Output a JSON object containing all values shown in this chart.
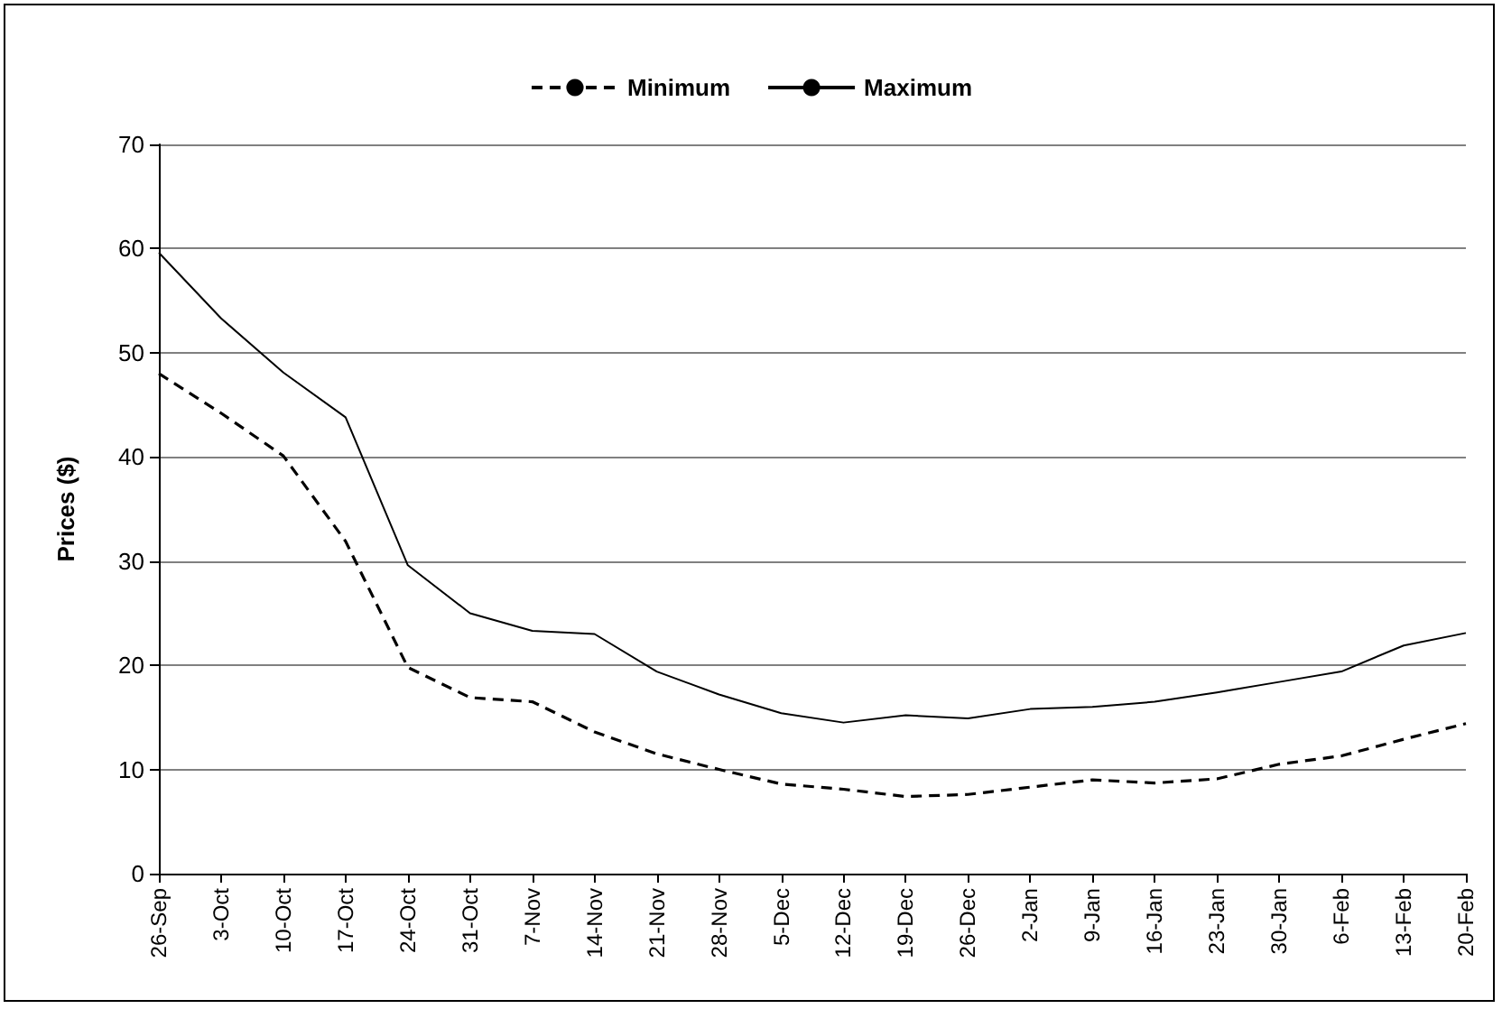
{
  "chart_data": {
    "type": "line",
    "ylabel": "Prices ($)",
    "categories": [
      "26-Sep",
      "3-Oct",
      "10-Oct",
      "17-Oct",
      "24-Oct",
      "31-Oct",
      "7-Nov",
      "14-Nov",
      "21-Nov",
      "28-Nov",
      "5-Dec",
      "12-Dec",
      "19-Dec",
      "26-Dec",
      "2-Jan",
      "9-Jan",
      "16-Jan",
      "23-Jan",
      "30-Jan",
      "6-Feb",
      "13-Feb",
      "20-Feb"
    ],
    "series": [
      {
        "name": "Minimum",
        "color": "#000000",
        "line_style": "dashed",
        "values": [
          48.0,
          44.2,
          40.1,
          31.9,
          19.8,
          16.9,
          16.5,
          13.6,
          11.5,
          10.0,
          8.6,
          8.1,
          7.4,
          7.6,
          8.3,
          9.0,
          8.7,
          9.1,
          10.5,
          11.3,
          12.9,
          14.4
        ]
      },
      {
        "name": "Maximum",
        "color": "#000000",
        "line_style": "solid",
        "values": [
          59.6,
          53.3,
          48.1,
          43.8,
          29.6,
          25.0,
          23.3,
          23.0,
          19.4,
          17.2,
          15.4,
          14.5,
          15.2,
          14.9,
          15.8,
          16.0,
          16.5,
          17.4,
          18.4,
          19.4,
          21.9,
          23.1
        ]
      }
    ],
    "ylim": [
      0,
      70
    ],
    "yticks": [
      0,
      10,
      20,
      30,
      40,
      50,
      60,
      70
    ],
    "grid": "y",
    "legend": "top",
    "marker": "none"
  }
}
